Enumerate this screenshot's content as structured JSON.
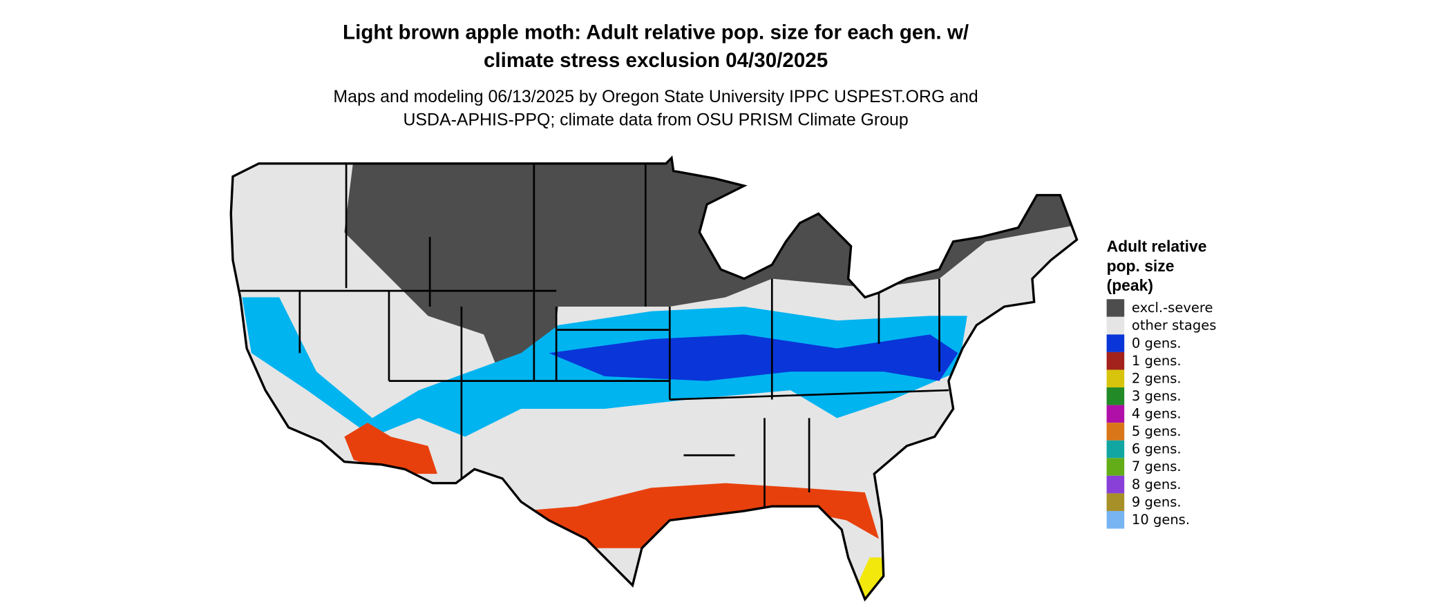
{
  "title": [
    "Light brown apple moth: Adult relative pop. size for each gen. w/",
    "climate stress exclusion 04/30/2025"
  ],
  "subtitle": [
    "Maps and modeling 06/13/2025 by Oregon State University IPPC USPEST.ORG and",
    "USDA-APHIS-PPQ; climate data from OSU PRISM Climate Group"
  ],
  "legend": {
    "title": [
      "Adult relative",
      "pop. size",
      "(peak)"
    ],
    "items": [
      {
        "label": "excl.-severe",
        "color": "#4d4d4d"
      },
      {
        "label": "other stages",
        "color": "#e5e5e5"
      },
      {
        "label": "0 gens.",
        "color": "#0a35d8"
      },
      {
        "label": "1 gens.",
        "color": "#a3221c"
      },
      {
        "label": "2 gens.",
        "color": "#d8c40c"
      },
      {
        "label": "3 gens.",
        "color": "#238a28"
      },
      {
        "label": "4 gens.",
        "color": "#b010a8"
      },
      {
        "label": "5 gens.",
        "color": "#d97618"
      },
      {
        "label": "6 gens.",
        "color": "#12a6a2"
      },
      {
        "label": "7 gens.",
        "color": "#63ae18"
      },
      {
        "label": "8 gens.",
        "color": "#8840d8"
      },
      {
        "label": "9 gens.",
        "color": "#a89028"
      },
      {
        "label": "10 gens.",
        "color": "#78b4f2"
      }
    ]
  }
}
